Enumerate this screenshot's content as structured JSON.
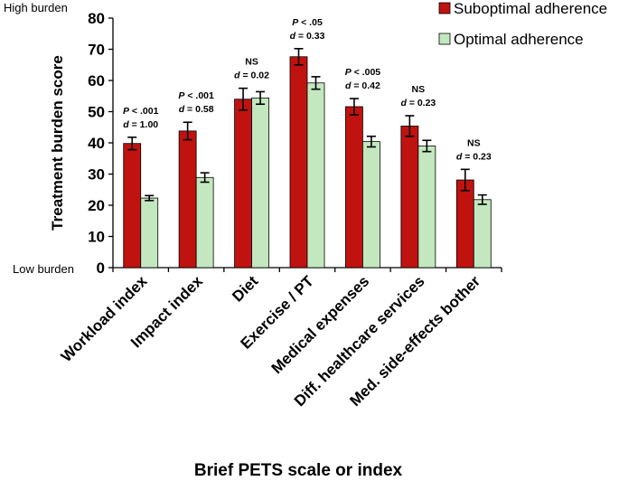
{
  "chart_data": {
    "type": "bar",
    "title": "",
    "xlabel": "Brief PETS scale or index",
    "ylabel": "Treatment burden score",
    "ylim": [
      0,
      80
    ],
    "yticks": [
      0,
      10,
      20,
      30,
      40,
      50,
      60,
      70,
      80
    ],
    "y_top_annotation": "High burden",
    "y_bottom_annotation": "Low burden",
    "categories": [
      "Workload index",
      "Impact index",
      "Diet",
      "Exercise / PT",
      "Medical expenses",
      "Diff. healthcare services",
      "Med. side-effects bother"
    ],
    "series": [
      {
        "name": "Suboptimal adherence",
        "color": "#c0130f",
        "values": [
          39.8,
          43.8,
          54.0,
          67.6,
          51.6,
          45.4,
          28.1
        ],
        "errors": [
          2.0,
          2.8,
          3.5,
          2.6,
          2.6,
          3.3,
          3.4
        ]
      },
      {
        "name": "Optimal adherence",
        "color": "#c3e8bf",
        "values": [
          22.3,
          28.9,
          54.4,
          59.2,
          40.4,
          39.0,
          21.8
        ],
        "errors": [
          0.8,
          1.5,
          2.0,
          2.0,
          1.7,
          1.8,
          1.5
        ]
      }
    ],
    "annotations": [
      {
        "p": "P < .001",
        "d": "d = 1.00"
      },
      {
        "p": "P < .001",
        "d": "d = 0.58"
      },
      {
        "p": "NS",
        "d": "d = 0.02"
      },
      {
        "p": "P < .05",
        "d": "d = 0.33"
      },
      {
        "p": "P < .005",
        "d": "d = 0.42"
      },
      {
        "p": "NS",
        "d": "d = 0.23"
      },
      {
        "p": "NS",
        "d": "d = 0.23"
      }
    ],
    "legend_position": "top-right"
  }
}
